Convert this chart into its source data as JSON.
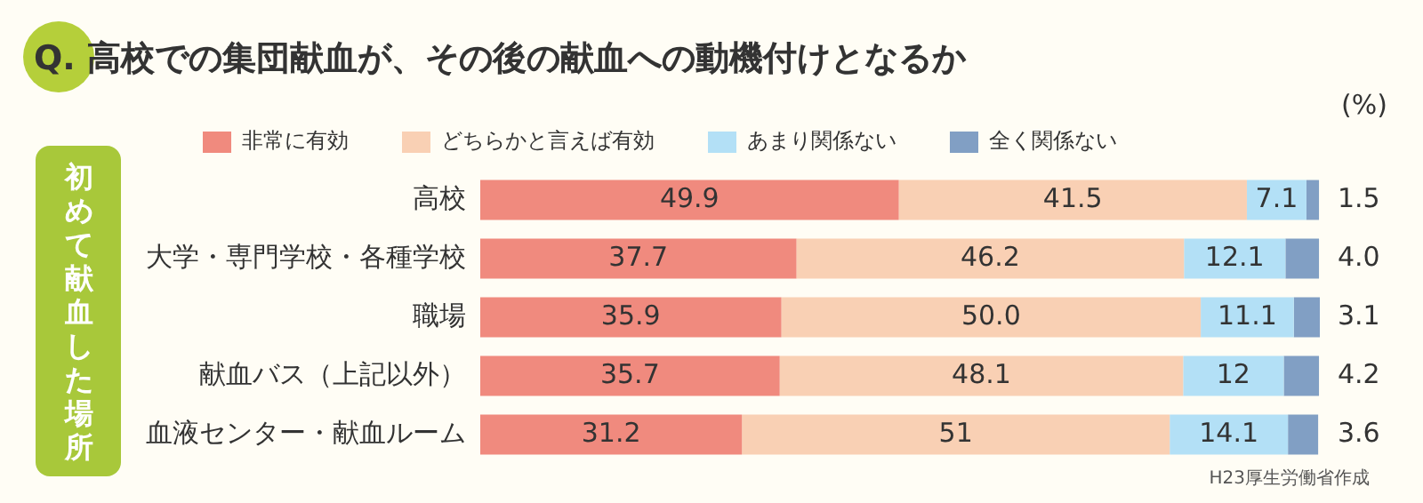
{
  "chart_data": {
    "type": "bar",
    "orientation": "horizontal",
    "stacked": true,
    "title": "Q. 高校での集団献血が、その後の献血への動機付けとなるか",
    "ylabel": "初めて献血した場所",
    "categories": [
      "高校",
      "大学・専門学校・各種学校",
      "職場",
      "献血バス（上記以外）",
      "血液センター・献血ルーム"
    ],
    "series": [
      {
        "name": "非常に有効",
        "color": "#f08a7e",
        "values": [
          49.9,
          37.7,
          35.9,
          35.7,
          31.2
        ],
        "value_labels": [
          "49.9",
          "37.7",
          "35.9",
          "35.7",
          "31.2"
        ]
      },
      {
        "name": "どちらかと言えば有効",
        "color": "#f9d0b4",
        "values": [
          41.5,
          46.2,
          50.0,
          48.1,
          51
        ],
        "value_labels": [
          "41.5",
          "46.2",
          "50.0",
          "48.1",
          "51"
        ]
      },
      {
        "name": "あまり関係ない",
        "color": "#b3e0f6",
        "values": [
          7.1,
          12.1,
          11.1,
          12,
          14.1
        ],
        "value_labels": [
          "7.1",
          "12.1",
          "11.1",
          "12",
          "14.1"
        ]
      },
      {
        "name": "全く関係ない",
        "color": "#819fc4",
        "values": [
          1.5,
          4.0,
          3.1,
          4.2,
          3.6
        ],
        "value_labels": [
          "1.5",
          "4.0",
          "3.1",
          "4.2",
          "3.6"
        ]
      }
    ],
    "xlim": [
      0,
      100.1
    ],
    "tick_labels": "y",
    "legend": "top",
    "annotations": [
      "(%)",
      "H23厚生労働省作成"
    ]
  }
}
